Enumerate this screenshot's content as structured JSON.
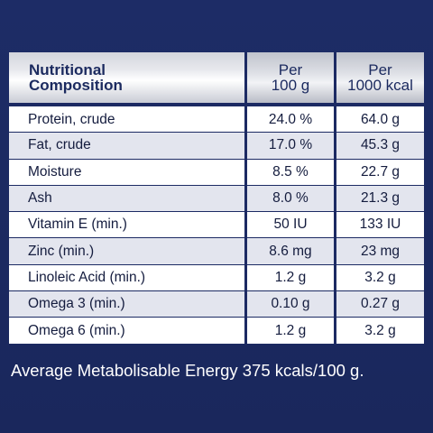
{
  "colors": {
    "background": "#1c2a63",
    "header_text": "#1b2a5f",
    "row_alt": "#e3e5ee",
    "row": "#ffffff",
    "footnote_text": "#ffffff"
  },
  "table": {
    "headers": {
      "col1_line1": "Nutritional",
      "col1_line2": "Composition",
      "col2_line1": "Per",
      "col2_line2": "100 g",
      "col3_line1": "Per",
      "col3_line2": "1000 kcal"
    },
    "rows": [
      {
        "name": "Protein, crude",
        "per100g": "24.0 %",
        "per1000kcal": "64.0 g"
      },
      {
        "name": "Fat, crude",
        "per100g": "17.0 %",
        "per1000kcal": "45.3 g"
      },
      {
        "name": "Moisture",
        "per100g": "8.5 %",
        "per1000kcal": "22.7 g"
      },
      {
        "name": "Ash",
        "per100g": "8.0 %",
        "per1000kcal": "21.3 g"
      },
      {
        "name": "Vitamin E (min.)",
        "per100g": "50 IU",
        "per1000kcal": "133 IU"
      },
      {
        "name": "Zinc (min.)",
        "per100g": "8.6 mg",
        "per1000kcal": "23 mg"
      },
      {
        "name": "Linoleic Acid (min.)",
        "per100g": "1.2 g",
        "per1000kcal": "3.2 g"
      },
      {
        "name": "Omega 3 (min.)",
        "per100g": "0.10 g",
        "per1000kcal": "0.27 g"
      },
      {
        "name": "Omega 6 (min.)",
        "per100g": "1.2 g",
        "per1000kcal": "3.2 g"
      }
    ]
  },
  "footnote": "Average Metabolisable Energy 375 kcals/100 g."
}
